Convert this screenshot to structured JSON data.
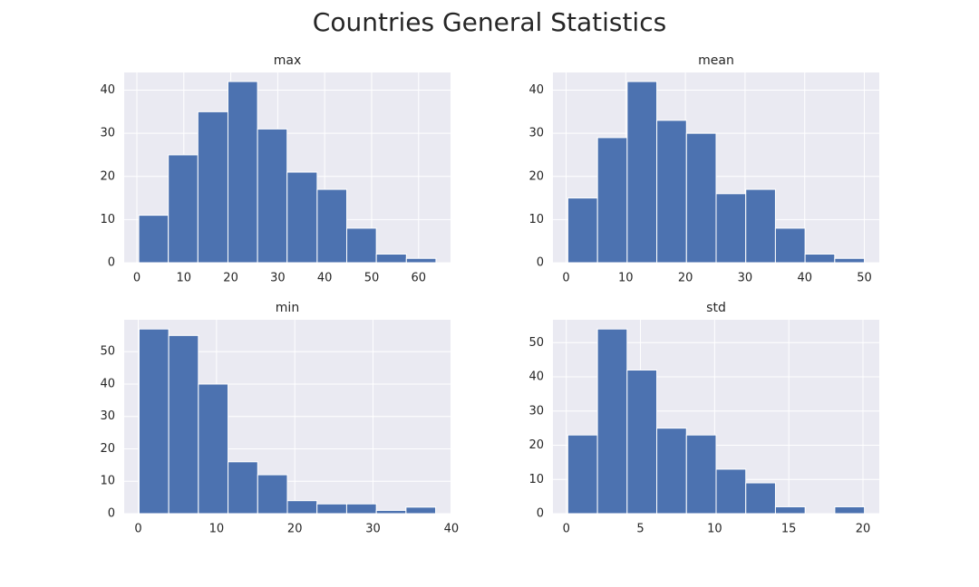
{
  "title": "Countries General Statistics",
  "chart_data": [
    {
      "type": "histogram",
      "title": "max",
      "color": "#4c72b0",
      "grid": true,
      "bins": [
        0.4,
        6.7,
        13.0,
        19.4,
        25.7,
        32.0,
        38.4,
        44.7,
        51.0,
        57.4,
        63.7
      ],
      "values": [
        11,
        25,
        35,
        42,
        31,
        21,
        17,
        8,
        2,
        1
      ],
      "xlim": [
        -2.7,
        66.8
      ],
      "xticks": [
        0,
        10,
        20,
        30,
        40,
        50,
        60
      ],
      "ylim": [
        0,
        44.1
      ],
      "yticks": [
        0,
        10,
        20,
        30,
        40
      ]
    },
    {
      "type": "histogram",
      "title": "mean",
      "color": "#4c72b0",
      "grid": true,
      "bins": [
        0.3,
        5.27,
        10.24,
        15.21,
        20.18,
        25.15,
        30.12,
        35.09,
        40.06,
        45.03,
        50.0
      ],
      "values": [
        15,
        29,
        42,
        33,
        30,
        16,
        17,
        8,
        2,
        1
      ],
      "xlim": [
        -2.2,
        52.5
      ],
      "xticks": [
        0,
        10,
        20,
        30,
        40,
        50
      ],
      "ylim": [
        0,
        44.1
      ],
      "yticks": [
        0,
        10,
        20,
        30,
        40
      ]
    },
    {
      "type": "histogram",
      "title": "min",
      "color": "#4c72b0",
      "grid": true,
      "bins": [
        0.1,
        3.89,
        7.68,
        11.47,
        15.26,
        19.05,
        22.84,
        26.63,
        30.42,
        34.21,
        38.0
      ],
      "values": [
        57,
        55,
        40,
        16,
        12,
        4,
        3,
        3,
        1,
        2
      ],
      "xlim": [
        -1.8,
        39.9
      ],
      "xticks": [
        0,
        10,
        20,
        30,
        40
      ],
      "ylim": [
        0,
        59.85
      ],
      "yticks": [
        0,
        10,
        20,
        30,
        40,
        50
      ]
    },
    {
      "type": "histogram",
      "title": "std",
      "color": "#4c72b0",
      "grid": true,
      "bins": [
        0.1,
        2.1,
        4.1,
        6.1,
        8.1,
        10.1,
        12.1,
        14.1,
        16.1,
        18.1,
        20.1
      ],
      "values": [
        23,
        54,
        42,
        25,
        23,
        13,
        9,
        2,
        0,
        2
      ],
      "xlim": [
        -0.9,
        21.1
      ],
      "xticks": [
        0,
        5,
        10,
        15,
        20
      ],
      "ylim": [
        0,
        56.7
      ],
      "yticks": [
        0,
        10,
        20,
        30,
        40,
        50
      ]
    }
  ]
}
